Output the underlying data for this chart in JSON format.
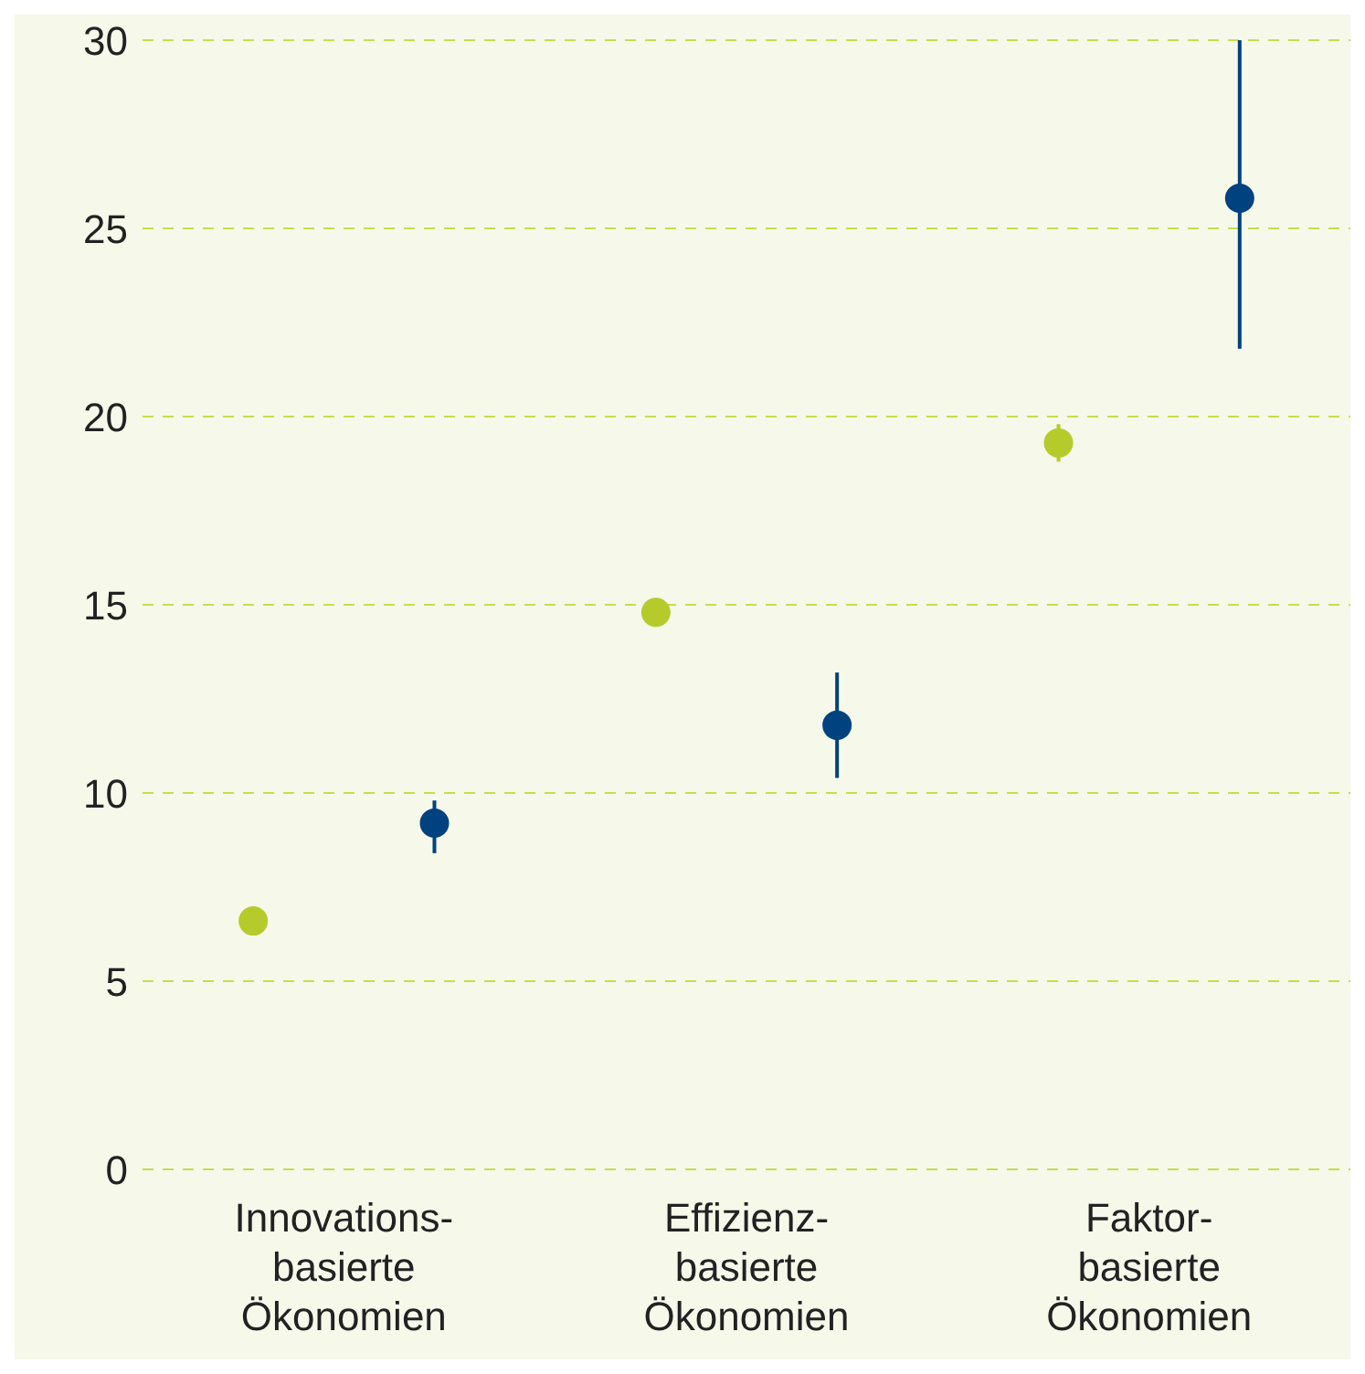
{
  "chart_data": {
    "type": "scatter",
    "categories": [
      "Innovations-\nbasierte\nÖkonomien",
      "Effizienz-\nbasierte\nÖkonomien",
      "Faktor-\nbasierte\nÖkonomien"
    ],
    "series": [
      {
        "color": "#b5cb2c",
        "values": [
          6.6,
          14.8,
          19.3
        ],
        "errors": [
          null,
          null,
          [
            18.8,
            19.8
          ]
        ]
      },
      {
        "color": "#00427f",
        "values": [
          9.2,
          11.8,
          25.8
        ],
        "errors": [
          [
            8.4,
            9.8
          ],
          [
            10.4,
            13.2
          ],
          [
            21.8,
            30
          ]
        ]
      }
    ],
    "ylim": [
      0,
      30
    ],
    "yticks": [
      0,
      5,
      10,
      15,
      20,
      25,
      30
    ],
    "grid": "y",
    "marker": "circle"
  }
}
